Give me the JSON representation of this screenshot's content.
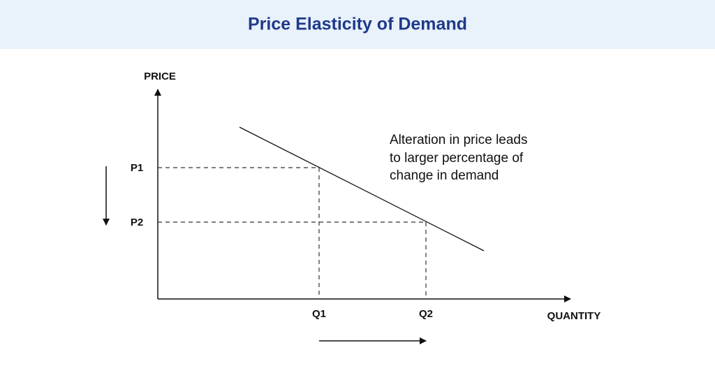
{
  "header": {
    "title": "Price Elasticity of Demand"
  },
  "axes": {
    "y_label": "PRICE",
    "x_label": "QUANTITY"
  },
  "price_points": [
    "P1",
    "P2"
  ],
  "quantity_points": [
    "Q1",
    "Q2"
  ],
  "annotation": {
    "lines": [
      "Alteration in price leads",
      "to larger percentage of",
      "change in demand"
    ]
  }
}
